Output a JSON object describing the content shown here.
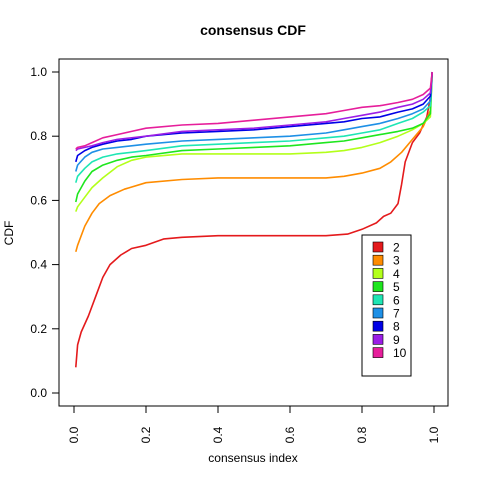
{
  "chart_data": {
    "type": "line",
    "title": "consensus CDF",
    "xlabel": "consensus index",
    "ylabel": "CDF",
    "xlim": [
      0,
      1
    ],
    "ylim": [
      0,
      1
    ],
    "x_ticks": [
      "0.0",
      "0.2",
      "0.4",
      "0.6",
      "0.8",
      "1.0"
    ],
    "y_ticks": [
      "0.0",
      "0.2",
      "0.4",
      "0.6",
      "0.8",
      "1.0"
    ],
    "grid": false,
    "legend_position": "bottom-right",
    "series": [
      {
        "name": "2",
        "color": "#e41a1c",
        "points": [
          [
            0.005,
            0.08
          ],
          [
            0.01,
            0.15
          ],
          [
            0.02,
            0.19
          ],
          [
            0.04,
            0.24
          ],
          [
            0.06,
            0.3
          ],
          [
            0.08,
            0.36
          ],
          [
            0.1,
            0.4
          ],
          [
            0.13,
            0.43
          ],
          [
            0.16,
            0.45
          ],
          [
            0.2,
            0.46
          ],
          [
            0.25,
            0.48
          ],
          [
            0.3,
            0.485
          ],
          [
            0.4,
            0.49
          ],
          [
            0.5,
            0.49
          ],
          [
            0.6,
            0.49
          ],
          [
            0.7,
            0.49
          ],
          [
            0.76,
            0.495
          ],
          [
            0.8,
            0.51
          ],
          [
            0.84,
            0.53
          ],
          [
            0.86,
            0.55
          ],
          [
            0.88,
            0.56
          ],
          [
            0.9,
            0.59
          ],
          [
            0.91,
            0.65
          ],
          [
            0.92,
            0.72
          ],
          [
            0.94,
            0.78
          ],
          [
            0.96,
            0.81
          ],
          [
            0.98,
            0.86
          ],
          [
            0.99,
            0.92
          ],
          [
            0.995,
            1.0
          ]
        ]
      },
      {
        "name": "3",
        "color": "#ff8c00",
        "points": [
          [
            0.005,
            0.44
          ],
          [
            0.01,
            0.46
          ],
          [
            0.03,
            0.52
          ],
          [
            0.05,
            0.56
          ],
          [
            0.07,
            0.59
          ],
          [
            0.1,
            0.615
          ],
          [
            0.14,
            0.635
          ],
          [
            0.2,
            0.655
          ],
          [
            0.3,
            0.665
          ],
          [
            0.4,
            0.67
          ],
          [
            0.5,
            0.67
          ],
          [
            0.6,
            0.67
          ],
          [
            0.7,
            0.67
          ],
          [
            0.75,
            0.675
          ],
          [
            0.8,
            0.685
          ],
          [
            0.85,
            0.7
          ],
          [
            0.88,
            0.72
          ],
          [
            0.91,
            0.75
          ],
          [
            0.94,
            0.79
          ],
          [
            0.97,
            0.83
          ],
          [
            0.99,
            0.88
          ],
          [
            0.995,
            1.0
          ]
        ]
      },
      {
        "name": "4",
        "color": "#b3ff1a",
        "points": [
          [
            0.005,
            0.565
          ],
          [
            0.01,
            0.58
          ],
          [
            0.03,
            0.61
          ],
          [
            0.05,
            0.64
          ],
          [
            0.08,
            0.67
          ],
          [
            0.12,
            0.705
          ],
          [
            0.16,
            0.725
          ],
          [
            0.2,
            0.735
          ],
          [
            0.3,
            0.745
          ],
          [
            0.4,
            0.745
          ],
          [
            0.5,
            0.745
          ],
          [
            0.6,
            0.745
          ],
          [
            0.7,
            0.75
          ],
          [
            0.75,
            0.755
          ],
          [
            0.8,
            0.765
          ],
          [
            0.85,
            0.78
          ],
          [
            0.9,
            0.8
          ],
          [
            0.94,
            0.82
          ],
          [
            0.97,
            0.84
          ],
          [
            0.99,
            0.86
          ],
          [
            0.995,
            1.0
          ]
        ]
      },
      {
        "name": "5",
        "color": "#1ee61e",
        "points": [
          [
            0.005,
            0.595
          ],
          [
            0.01,
            0.62
          ],
          [
            0.03,
            0.66
          ],
          [
            0.05,
            0.69
          ],
          [
            0.08,
            0.71
          ],
          [
            0.12,
            0.725
          ],
          [
            0.16,
            0.735
          ],
          [
            0.2,
            0.74
          ],
          [
            0.3,
            0.755
          ],
          [
            0.4,
            0.76
          ],
          [
            0.5,
            0.765
          ],
          [
            0.6,
            0.77
          ],
          [
            0.7,
            0.78
          ],
          [
            0.75,
            0.785
          ],
          [
            0.8,
            0.795
          ],
          [
            0.85,
            0.805
          ],
          [
            0.9,
            0.815
          ],
          [
            0.94,
            0.825
          ],
          [
            0.97,
            0.84
          ],
          [
            0.99,
            0.87
          ],
          [
            0.995,
            1.0
          ]
        ]
      },
      {
        "name": "6",
        "color": "#1ee6b4",
        "points": [
          [
            0.005,
            0.655
          ],
          [
            0.01,
            0.675
          ],
          [
            0.03,
            0.7
          ],
          [
            0.05,
            0.72
          ],
          [
            0.08,
            0.735
          ],
          [
            0.12,
            0.745
          ],
          [
            0.16,
            0.75
          ],
          [
            0.2,
            0.755
          ],
          [
            0.3,
            0.77
          ],
          [
            0.4,
            0.775
          ],
          [
            0.5,
            0.78
          ],
          [
            0.6,
            0.785
          ],
          [
            0.7,
            0.795
          ],
          [
            0.75,
            0.8
          ],
          [
            0.8,
            0.81
          ],
          [
            0.85,
            0.82
          ],
          [
            0.9,
            0.84
          ],
          [
            0.94,
            0.855
          ],
          [
            0.97,
            0.875
          ],
          [
            0.99,
            0.895
          ],
          [
            0.995,
            1.0
          ]
        ]
      },
      {
        "name": "7",
        "color": "#1e90e6",
        "points": [
          [
            0.005,
            0.69
          ],
          [
            0.01,
            0.71
          ],
          [
            0.03,
            0.735
          ],
          [
            0.05,
            0.75
          ],
          [
            0.08,
            0.76
          ],
          [
            0.12,
            0.765
          ],
          [
            0.16,
            0.77
          ],
          [
            0.2,
            0.775
          ],
          [
            0.3,
            0.785
          ],
          [
            0.4,
            0.79
          ],
          [
            0.5,
            0.795
          ],
          [
            0.6,
            0.8
          ],
          [
            0.7,
            0.81
          ],
          [
            0.75,
            0.82
          ],
          [
            0.8,
            0.83
          ],
          [
            0.85,
            0.84
          ],
          [
            0.9,
            0.855
          ],
          [
            0.94,
            0.87
          ],
          [
            0.97,
            0.885
          ],
          [
            0.99,
            0.91
          ],
          [
            0.995,
            1.0
          ]
        ]
      },
      {
        "name": "8",
        "color": "#0000e6",
        "points": [
          [
            0.005,
            0.72
          ],
          [
            0.01,
            0.74
          ],
          [
            0.03,
            0.755
          ],
          [
            0.05,
            0.765
          ],
          [
            0.08,
            0.775
          ],
          [
            0.12,
            0.785
          ],
          [
            0.16,
            0.79
          ],
          [
            0.2,
            0.8
          ],
          [
            0.3,
            0.81
          ],
          [
            0.4,
            0.815
          ],
          [
            0.5,
            0.82
          ],
          [
            0.6,
            0.83
          ],
          [
            0.7,
            0.84
          ],
          [
            0.75,
            0.845
          ],
          [
            0.8,
            0.855
          ],
          [
            0.85,
            0.86
          ],
          [
            0.9,
            0.875
          ],
          [
            0.94,
            0.885
          ],
          [
            0.97,
            0.9
          ],
          [
            0.99,
            0.925
          ],
          [
            0.995,
            1.0
          ]
        ]
      },
      {
        "name": "9",
        "color": "#9b1ee6",
        "points": [
          [
            0.005,
            0.755
          ],
          [
            0.01,
            0.76
          ],
          [
            0.03,
            0.765
          ],
          [
            0.05,
            0.77
          ],
          [
            0.08,
            0.78
          ],
          [
            0.12,
            0.79
          ],
          [
            0.16,
            0.795
          ],
          [
            0.2,
            0.8
          ],
          [
            0.3,
            0.815
          ],
          [
            0.4,
            0.82
          ],
          [
            0.5,
            0.825
          ],
          [
            0.6,
            0.835
          ],
          [
            0.7,
            0.845
          ],
          [
            0.75,
            0.855
          ],
          [
            0.8,
            0.865
          ],
          [
            0.85,
            0.875
          ],
          [
            0.9,
            0.89
          ],
          [
            0.94,
            0.9
          ],
          [
            0.97,
            0.915
          ],
          [
            0.99,
            0.935
          ],
          [
            0.995,
            1.0
          ]
        ]
      },
      {
        "name": "10",
        "color": "#e61e9b",
        "points": [
          [
            0.005,
            0.76
          ],
          [
            0.01,
            0.765
          ],
          [
            0.03,
            0.77
          ],
          [
            0.05,
            0.78
          ],
          [
            0.08,
            0.795
          ],
          [
            0.12,
            0.805
          ],
          [
            0.16,
            0.815
          ],
          [
            0.2,
            0.825
          ],
          [
            0.3,
            0.835
          ],
          [
            0.4,
            0.84
          ],
          [
            0.5,
            0.85
          ],
          [
            0.6,
            0.86
          ],
          [
            0.7,
            0.87
          ],
          [
            0.75,
            0.88
          ],
          [
            0.8,
            0.89
          ],
          [
            0.85,
            0.895
          ],
          [
            0.9,
            0.905
          ],
          [
            0.94,
            0.915
          ],
          [
            0.97,
            0.93
          ],
          [
            0.99,
            0.95
          ],
          [
            0.995,
            1.0
          ]
        ]
      }
    ]
  }
}
